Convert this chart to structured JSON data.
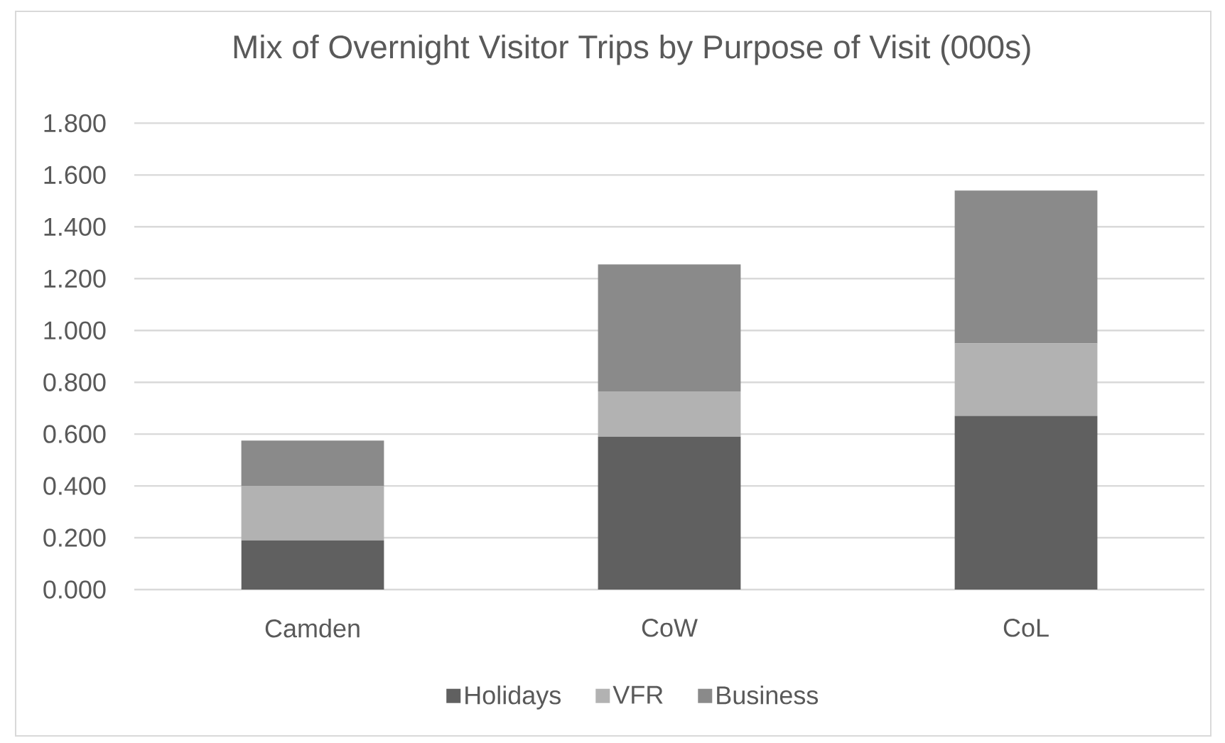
{
  "chart_data": {
    "type": "bar",
    "title": "Mix of Overnight Visitor Trips by Purpose of Visit (000s)",
    "categories": [
      "Camden",
      "CoW",
      "CoL"
    ],
    "stacked": true,
    "series": [
      {
        "name": "Holidays",
        "color": "#606060",
        "values": [
          0.19,
          0.59,
          0.67
        ]
      },
      {
        "name": "VFR",
        "color": "#b2b2b2",
        "values": [
          0.21,
          0.175,
          0.28
        ]
      },
      {
        "name": "Business",
        "color": "#8a8a8a",
        "values": [
          0.175,
          0.49,
          0.59
        ]
      }
    ],
    "ylim": [
      0,
      1.8
    ],
    "yticks": [
      {
        "value": 0,
        "label": "0.000"
      },
      {
        "value": 0.2,
        "label": "0.200"
      },
      {
        "value": 0.4,
        "label": "0.400"
      },
      {
        "value": 0.6,
        "label": "0.600"
      },
      {
        "value": 0.8,
        "label": "0.800"
      },
      {
        "value": 1.0,
        "label": "1.000"
      },
      {
        "value": 1.2,
        "label": "1.200"
      },
      {
        "value": 1.4,
        "label": "1.400"
      },
      {
        "value": 1.6,
        "label": "1.600"
      },
      {
        "value": 1.8,
        "label": "1.800"
      }
    ],
    "grid": "y",
    "legend": "bottom"
  }
}
